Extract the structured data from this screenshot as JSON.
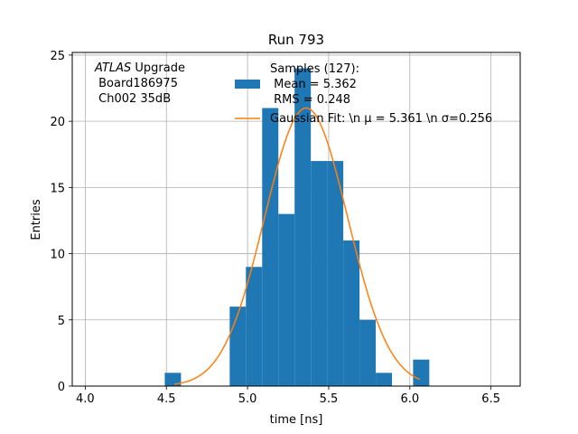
{
  "chart_data": {
    "type": "bar",
    "title": "Run 793",
    "xlabel": "time [ns]",
    "ylabel": "Entries",
    "xlim": [
      3.92,
      6.68
    ],
    "ylim": [
      0,
      25.2
    ],
    "xticks": [
      4.0,
      4.5,
      5.0,
      5.5,
      6.0,
      6.5
    ],
    "xtick_labels": [
      "4.0",
      "4.5",
      "5.0",
      "5.5",
      "6.0",
      "6.5"
    ],
    "yticks": [
      0,
      5,
      10,
      15,
      20,
      25
    ],
    "ytick_labels": [
      "0",
      "5",
      "10",
      "15",
      "20",
      "25"
    ],
    "grid": true,
    "annotation": {
      "italic": "ATLAS",
      "rest": " Upgrade",
      "line2": " Board186975",
      "line3": " Ch002 35dB"
    },
    "histogram": {
      "name": "Samples",
      "color": "#1f77b4",
      "bin_width": 0.1,
      "bins": [
        {
          "x0": 4.49,
          "count": 1
        },
        {
          "x0": 4.89,
          "count": 6
        },
        {
          "x0": 4.99,
          "count": 9
        },
        {
          "x0": 5.09,
          "count": 21
        },
        {
          "x0": 5.19,
          "count": 13
        },
        {
          "x0": 5.29,
          "count": 24
        },
        {
          "x0": 5.39,
          "count": 17
        },
        {
          "x0": 5.49,
          "count": 17
        },
        {
          "x0": 5.59,
          "count": 11
        },
        {
          "x0": 5.69,
          "count": 5
        },
        {
          "x0": 5.79,
          "count": 1
        },
        {
          "x0": 6.02,
          "count": 2
        }
      ]
    },
    "gaussian_fit": {
      "color": "#ff7f0e",
      "mu": 5.361,
      "sigma": 0.256,
      "amplitude": 21.0,
      "x_range": [
        4.55,
        6.06
      ]
    },
    "legend": {
      "position": "top-right",
      "entries": [
        {
          "line1": "Samples (127):",
          "line2": " Mean = 5.362",
          "line3": " RMS = 0.248"
        },
        {
          "line1": "Gaussian Fit: \\n μ = 5.361 \\n σ=0.256"
        }
      ]
    }
  }
}
